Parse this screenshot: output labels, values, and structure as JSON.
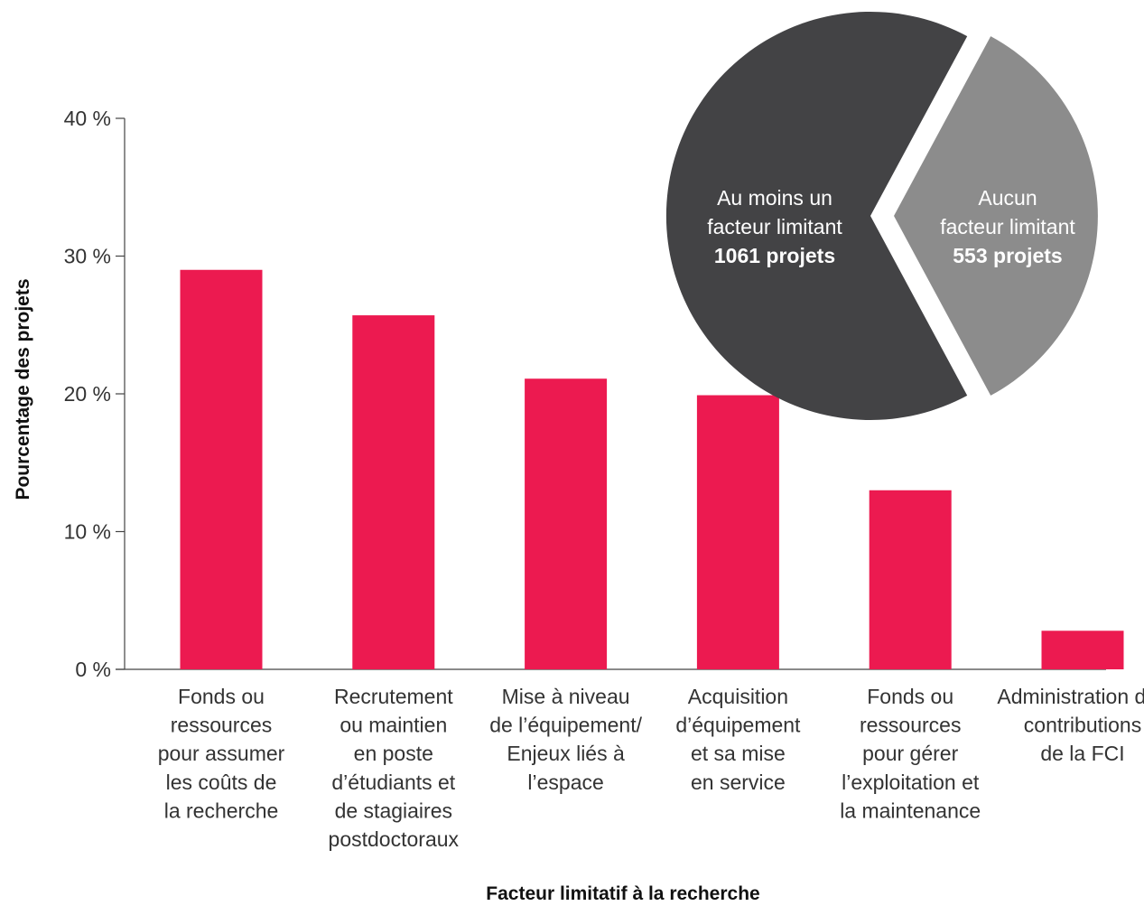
{
  "colors": {
    "bar": "#ec1a50",
    "axis": "#444444",
    "pie_main": "#434345",
    "pie_secondary": "#8c8c8c",
    "background": "#ffffff"
  },
  "chart_data": [
    {
      "type": "bar",
      "title": "",
      "xlabel": "Facteur limitatif à la recherche",
      "ylabel": "Pourcentage des projets",
      "ylim": [
        0,
        40
      ],
      "yticks": [
        "0 %",
        "10 %",
        "20 %",
        "30 %",
        "40 %"
      ],
      "ytick_values": [
        0,
        10,
        20,
        30,
        40
      ],
      "grid": false,
      "categories": [
        [
          "Fonds ou",
          "ressources",
          "pour assumer",
          "les coûts de",
          "la recherche"
        ],
        [
          "Recrutement",
          "ou maintien",
          "en poste",
          "d’étudiants et",
          "de stagiaires",
          "postdoctoraux"
        ],
        [
          "Mise à niveau",
          "de l’équipement/",
          "Enjeux liés à",
          "l’espace"
        ],
        [
          "Acquisition",
          "d’équipement",
          "et sa mise",
          "en service"
        ],
        [
          "Fonds ou",
          "ressources",
          "pour gérer",
          "l’exploitation et",
          "la maintenance"
        ],
        [
          "Administration des",
          "contributions",
          "de la FCI"
        ]
      ],
      "values": [
        29.0,
        25.7,
        21.1,
        19.9,
        13.0,
        2.8
      ]
    },
    {
      "type": "pie",
      "slices": [
        {
          "lines": [
            "Au moins un",
            "facteur limitant"
          ],
          "value_label": "1061 projets",
          "value": 1061
        },
        {
          "lines": [
            "Aucun",
            "facteur limitant"
          ],
          "value_label": "553 projets",
          "value": 553
        }
      ]
    }
  ]
}
